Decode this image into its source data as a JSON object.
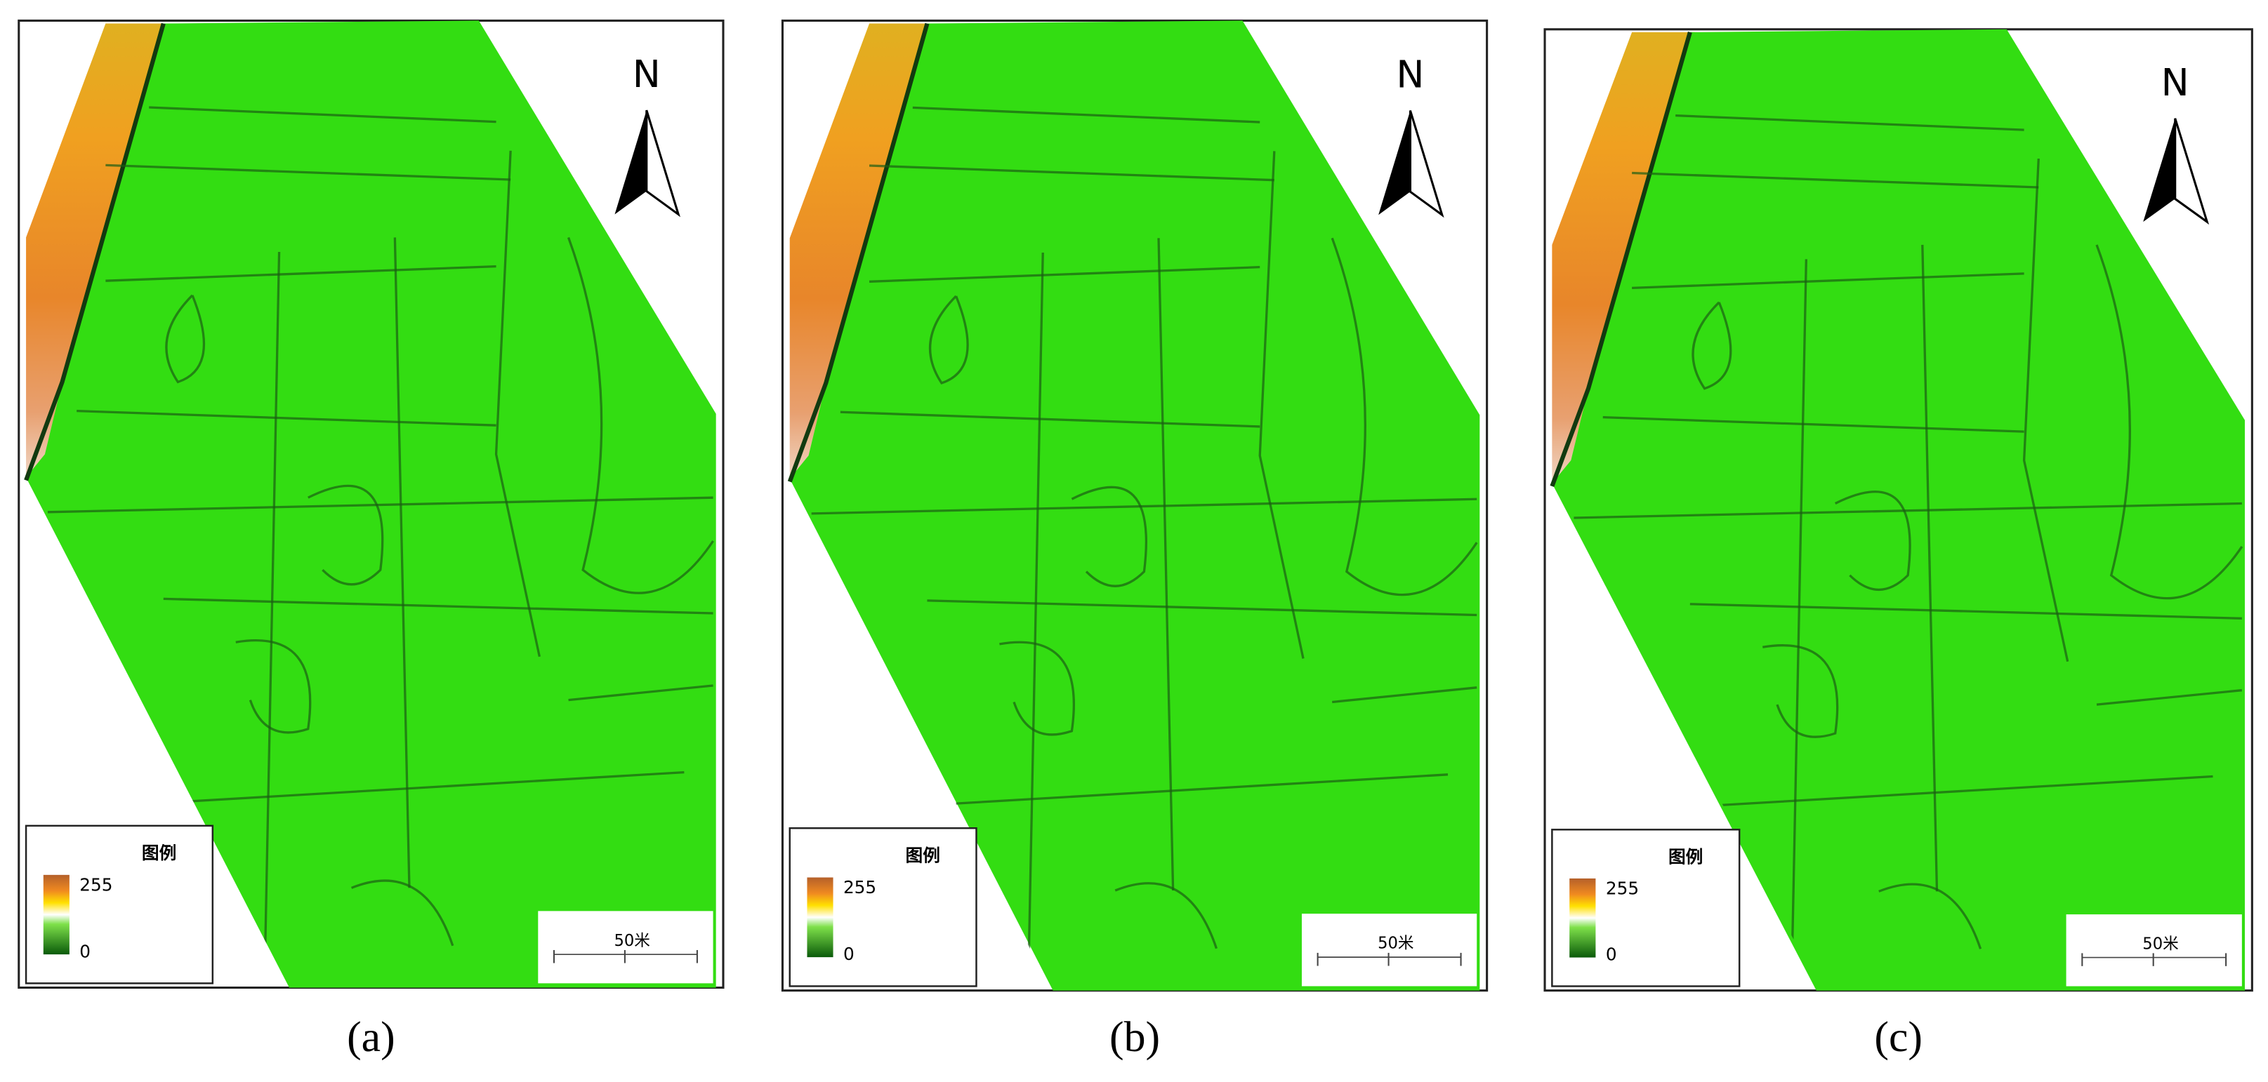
{
  "panels": [
    {
      "caption": "(a)",
      "north": "N",
      "legend_title": "图例",
      "legend_max": 255,
      "legend_min": 0,
      "scale_label": "50米"
    },
    {
      "caption": "(b)",
      "north": "N",
      "legend_title": "图例",
      "legend_max": 255,
      "legend_min": 0,
      "scale_label": "50米"
    },
    {
      "caption": "(c)",
      "north": "N",
      "legend_title": "图例",
      "legend_max": 255,
      "legend_min": 0,
      "scale_label": "50米"
    }
  ]
}
